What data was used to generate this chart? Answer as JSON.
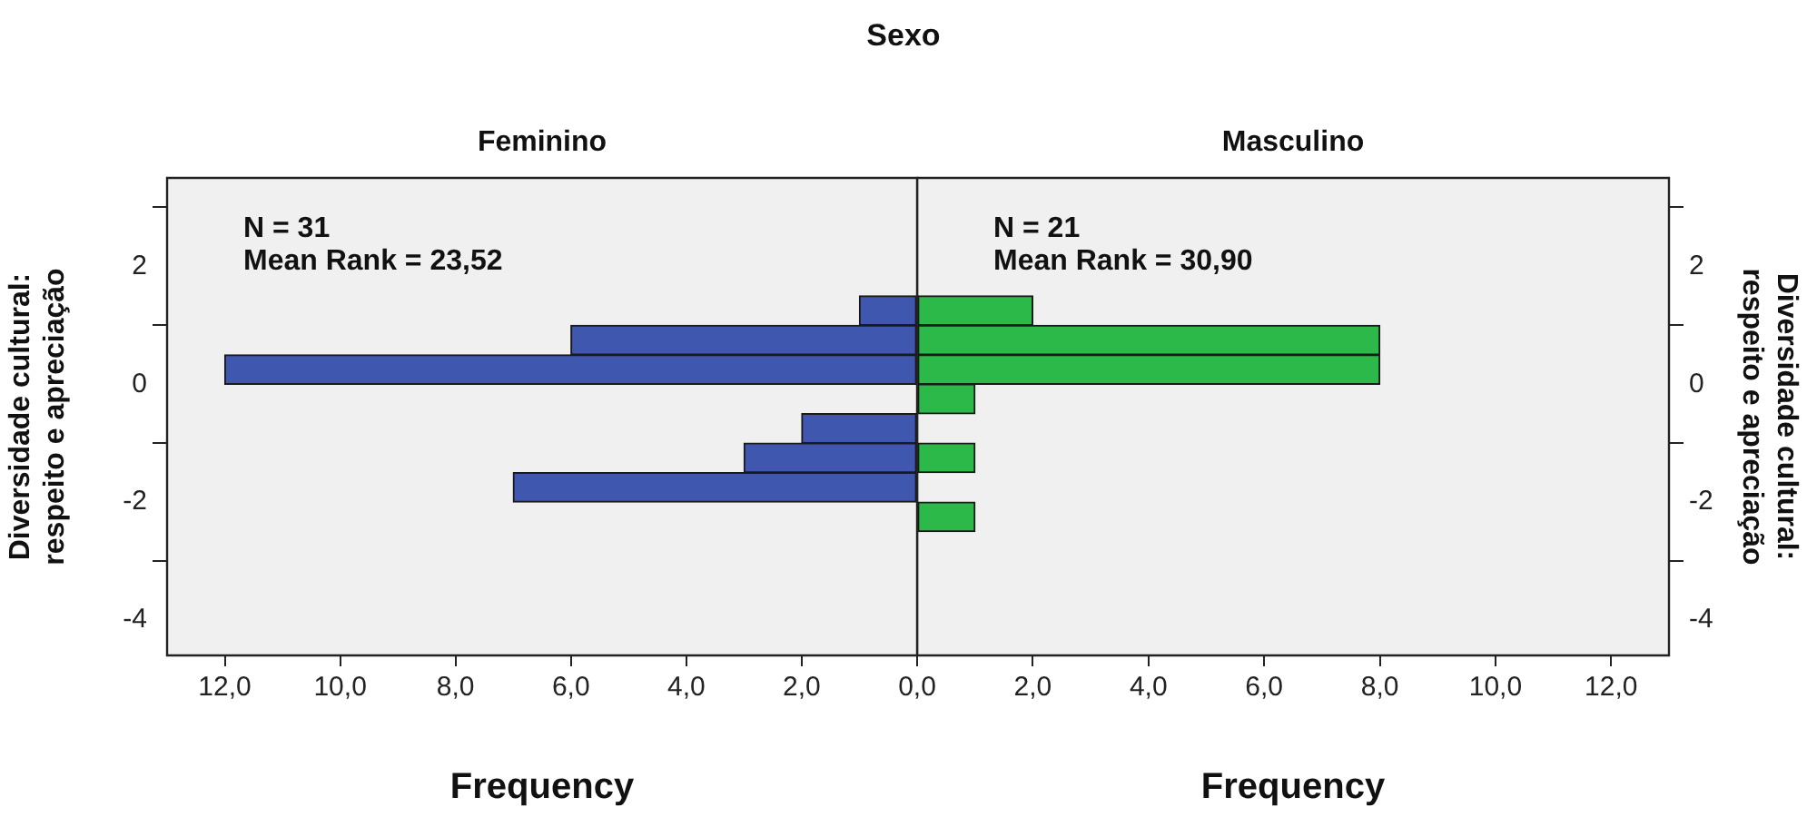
{
  "chart_data": [
    {
      "type": "histogram",
      "orientation": "horizontal",
      "title": "Sexo",
      "subtitle": "Feminino",
      "xlabel": "Frequency",
      "ylabel": "Diversidade cultural:\nrespeito e apreciação",
      "bins": [
        -2.5,
        -2,
        -1.5,
        -1,
        -0.5,
        0,
        0.5,
        1,
        1.5
      ],
      "values": [
        0,
        7,
        3,
        2,
        0,
        12,
        6,
        1
      ],
      "color": "#3f57ae",
      "xlim": [
        13,
        0
      ],
      "xticks": [
        {
          "value": 12,
          "label": "12,0"
        },
        {
          "value": 10,
          "label": "10,0"
        },
        {
          "value": 8,
          "label": "8,0"
        },
        {
          "value": 6,
          "label": "6,0"
        },
        {
          "value": 4,
          "label": "4,0"
        },
        {
          "value": 2,
          "label": "2,0"
        },
        {
          "value": 0,
          "label": "0,0"
        }
      ],
      "ylim": [
        -4.6,
        3.5
      ],
      "yticks": [
        -4,
        -2,
        0,
        2
      ],
      "annotations": [
        "N = 31",
        "Mean Rank = 23,52"
      ],
      "grid": false,
      "legend": false
    },
    {
      "type": "histogram",
      "orientation": "horizontal",
      "title": "Masculino",
      "xlabel": "Frequency",
      "ylabel": "Diversidade cultural:\nrespeito e apreciação",
      "bins": [
        -2.5,
        -2,
        -1.5,
        -1,
        -0.5,
        0,
        0.5,
        1,
        1.5
      ],
      "values": [
        1,
        0,
        1,
        0,
        1,
        8,
        8,
        2
      ],
      "color": "#2db84a",
      "xlim": [
        0,
        13
      ],
      "xticks": [
        {
          "value": 0,
          "label": null
        },
        {
          "value": 2,
          "label": "2,0"
        },
        {
          "value": 4,
          "label": "4,0"
        },
        {
          "value": 6,
          "label": "6,0"
        },
        {
          "value": 8,
          "label": "8,0"
        },
        {
          "value": 10,
          "label": "10,0"
        },
        {
          "value": 12,
          "label": "12,0"
        }
      ],
      "ylim": [
        -4.6,
        3.5
      ],
      "yticks": [
        -4,
        -2,
        0,
        2
      ],
      "annotations": [
        "N = 21",
        "Mean Rank = 30,90"
      ],
      "grid": false,
      "legend": false
    }
  ]
}
